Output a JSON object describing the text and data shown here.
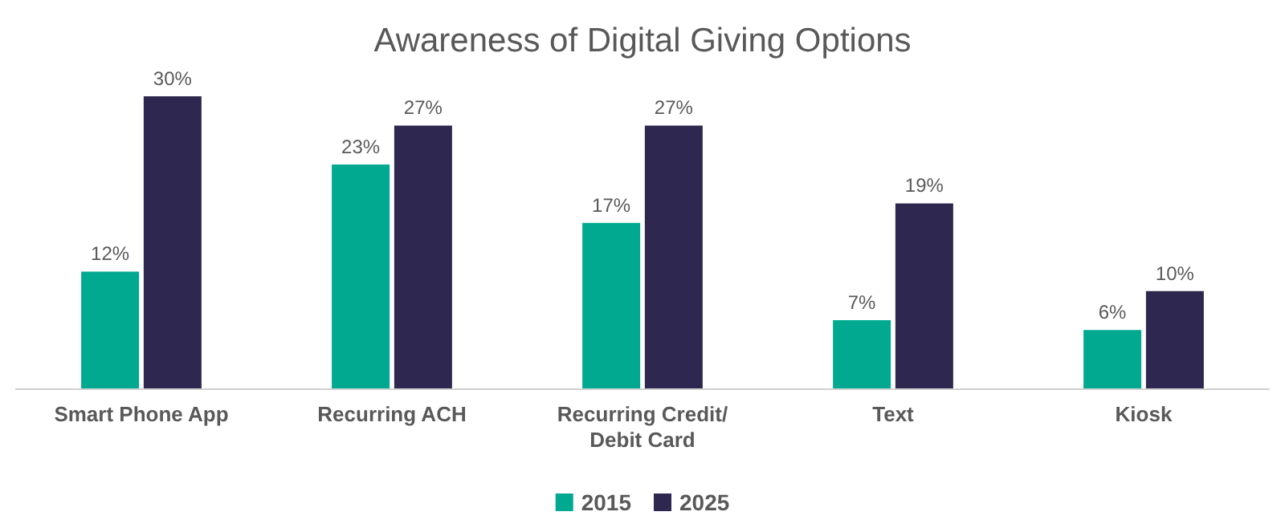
{
  "chart_data": {
    "type": "bar",
    "title": "Awareness of Digital Giving Options",
    "categories": [
      "Smart Phone App",
      "Recurring ACH",
      "Recurring Credit/Debit Card",
      "Text",
      "Kiosk"
    ],
    "series": [
      {
        "name": "2015",
        "color": "#00a98f",
        "values": [
          12,
          23,
          17,
          7,
          6
        ],
        "value_labels": [
          "12%",
          "23%",
          "17%",
          "7%",
          "6%"
        ]
      },
      {
        "name": "2025",
        "color": "#2e2850",
        "values": [
          30,
          27,
          27,
          19,
          10
        ],
        "value_labels": [
          "30%",
          "27%",
          "27%",
          "19%",
          "10%"
        ]
      }
    ],
    "legend": "bottom",
    "grid": false
  }
}
